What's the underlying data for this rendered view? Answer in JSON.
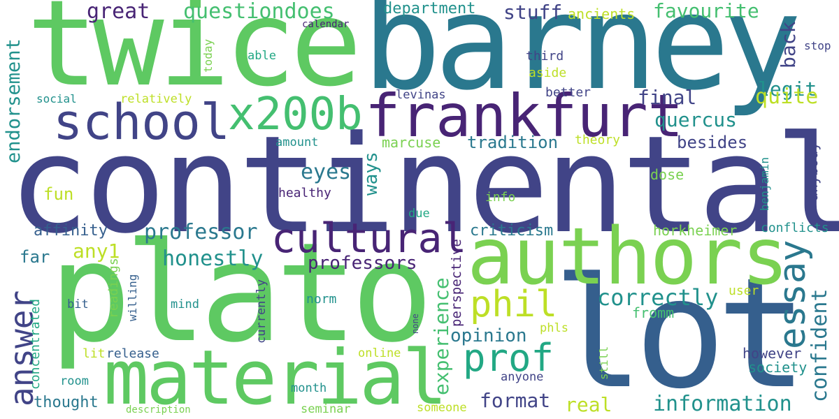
{
  "words": {
    "continental": "continental",
    "twice": "twice",
    "barney": "barney",
    "plato": "plato",
    "lot": "lot",
    "authors": "authors",
    "material": "material",
    "frankfurt": "frankfurt",
    "school": "school",
    "x200b": "x200b",
    "cultural": "cultural",
    "phil": "phil",
    "prof": "prof",
    "essay": "essay",
    "answer": "answer",
    "professor": "professor",
    "honestly": "honestly",
    "professors": "professors",
    "experience": "experience",
    "correctly": "correctly",
    "information": "information",
    "confident": "confident",
    "format": "format",
    "real": "real",
    "opinion": "opinion",
    "great": "great",
    "questiondoes": "questiondoes",
    "department": "department",
    "stuff": "stuff",
    "favourite": "favourite",
    "back": "back",
    "legit": "legit",
    "final": "final",
    "quite": "quite",
    "quercus": "quercus",
    "tradition": "tradition",
    "besides": "besides",
    "eyes": "eyes",
    "ways": "ways",
    "endorsement": "endorsement",
    "fun": "fun",
    "any1": "any1",
    "affinity": "affinity",
    "far": "far",
    "thought": "thought",
    "concentrated": "concentrated",
    "readings": "readings",
    "willing": "willing",
    "currently": "currently",
    "perspective": "perspective",
    "criticism": "criticism",
    "horkheimer": "horkheimer",
    "conflicts": "conflicts",
    "anybody": "anybody",
    "benjamin": "benjamin",
    "marcuse": "marcuse",
    "theory": "theory",
    "amount": "amount",
    "healthy": "healthy",
    "dose": "dose",
    "info": "info",
    "due": "due",
    "levinas": "levinas",
    "better": "better",
    "aside": "aside",
    "third": "third",
    "stop": "stop",
    "ancients": "ancients",
    "calendar": "calendar",
    "able": "able",
    "today": "today",
    "social": "social",
    "relatively": "relatively",
    "mind": "mind",
    "bit": "bit",
    "norm": "norm",
    "user": "user",
    "fromm": "fromm",
    "phls": "phls",
    "however": "however",
    "society": "society",
    "still": "still",
    "anyone": "anyone",
    "online": "online",
    "none": "none",
    "month": "month",
    "seminar": "seminar",
    "someone": "someone",
    "lit": "lit",
    "release": "release",
    "room": "room",
    "description": "description"
  },
  "colors": {
    "dark_purple": "#482475",
    "indigo": "#414487",
    "blue": "#355f8d",
    "steel_blue": "#2a788e",
    "teal": "#21918c",
    "sea_green": "#22a884",
    "green": "#44bf70",
    "light_green": "#7ad151",
    "lime": "#bddf26",
    "bright_green": "#5ec962"
  }
}
